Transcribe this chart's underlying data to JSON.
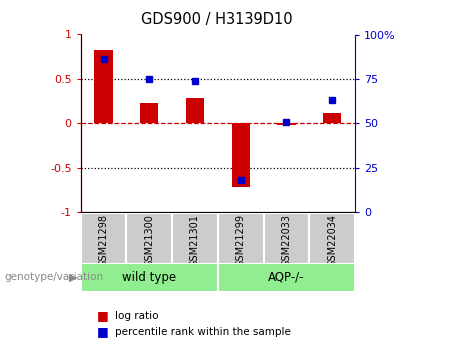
{
  "title": "GDS900 / H3139D10",
  "categories": [
    "GSM21298",
    "GSM21300",
    "GSM21301",
    "GSM21299",
    "GSM22033",
    "GSM22034"
  ],
  "log_ratio": [
    0.82,
    0.23,
    0.29,
    -0.72,
    -0.02,
    0.12
  ],
  "percentile_rank": [
    86,
    75,
    74,
    18,
    51,
    63
  ],
  "bar_color": "#cc0000",
  "dot_color": "#0000cc",
  "ylim_left": [
    -1,
    1
  ],
  "ylim_right": [
    0,
    100
  ],
  "yticks_left": [
    -1,
    -0.5,
    0,
    0.5,
    1
  ],
  "yticks_right": [
    0,
    25,
    50,
    75,
    100
  ],
  "ytick_labels_left": [
    "-1",
    "-0.5",
    "0",
    "0.5",
    "1"
  ],
  "ytick_labels_right": [
    "0",
    "25",
    "50",
    "75",
    "100%"
  ],
  "dotted_lines": [
    -0.5,
    0.5
  ],
  "group_label_wt": "wild type",
  "group_label_aqp": "AQP-/-",
  "group_color": "#90ee90",
  "label_box_color": "#cccccc",
  "legend_log_ratio": "log ratio",
  "legend_percentile": "percentile rank within the sample",
  "left_label": "genotype/variation",
  "arrow": "▶"
}
